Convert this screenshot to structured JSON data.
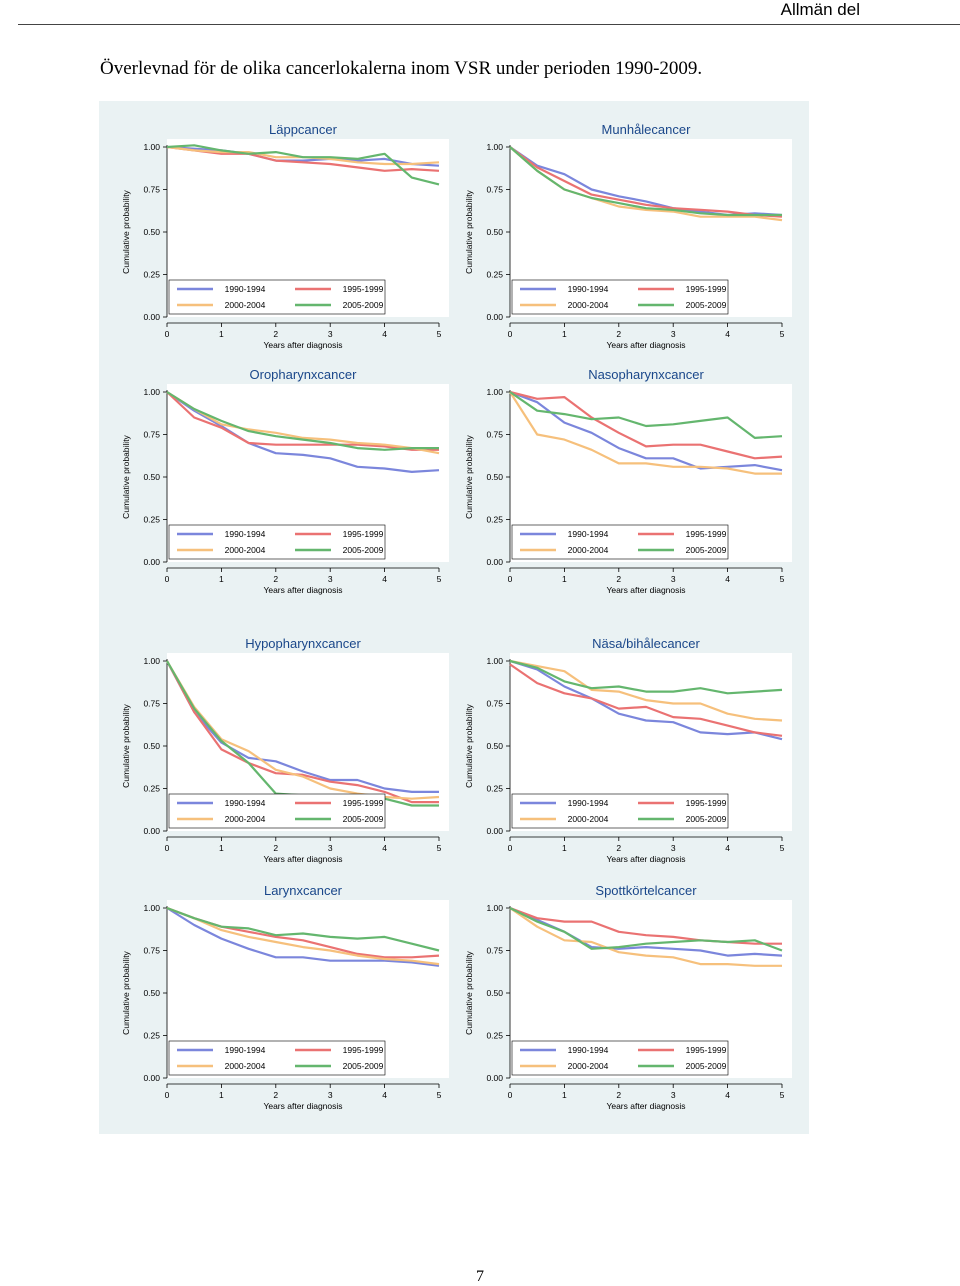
{
  "header": {
    "section": "Allmän del"
  },
  "document": {
    "title": "Överlevnad för de olika cancerlokalerna inom VSR under perioden 1990-2009.",
    "page_number": "7"
  },
  "series_colors": {
    "1990-1994": "#7b86dc",
    "1995-1999": "#ea7272",
    "2000-2004": "#f6c07c",
    "2005-2009": "#64b66e"
  },
  "chart_data": [
    {
      "type": "line",
      "title": "Läppcancer",
      "xlabel": "Years after diagnosis",
      "ylabel": "Cumulative probability",
      "xlim": [
        0,
        5
      ],
      "ylim": [
        0,
        1
      ],
      "xticks": [
        "0",
        "1",
        "2",
        "3",
        "4",
        "5"
      ],
      "yticks": [
        "0.00",
        "0.25",
        "0.50",
        "0.75",
        "1.00"
      ],
      "legend_position": "bottom",
      "grid": false,
      "x": [
        0,
        0.5,
        1,
        1.5,
        2,
        2.5,
        3,
        3.5,
        4,
        4.5,
        5
      ],
      "series": [
        {
          "name": "1990-1994",
          "values": [
            1.0,
            0.99,
            0.98,
            0.96,
            0.92,
            0.92,
            0.93,
            0.92,
            0.93,
            0.9,
            0.89
          ]
        },
        {
          "name": "1995-1999",
          "values": [
            1.0,
            0.98,
            0.96,
            0.96,
            0.92,
            0.91,
            0.9,
            0.88,
            0.86,
            0.87,
            0.86
          ]
        },
        {
          "name": "2000-2004",
          "values": [
            1.0,
            0.98,
            0.97,
            0.97,
            0.94,
            0.94,
            0.93,
            0.91,
            0.9,
            0.9,
            0.91
          ]
        },
        {
          "name": "2005-2009",
          "values": [
            1.0,
            1.01,
            0.98,
            0.96,
            0.97,
            0.94,
            0.94,
            0.93,
            0.96,
            0.82,
            0.78
          ]
        }
      ]
    },
    {
      "type": "line",
      "title": "Munhålecancer",
      "xlabel": "Years after diagnosis",
      "ylabel": "Cumulative probability",
      "xlim": [
        0,
        5
      ],
      "ylim": [
        0,
        1
      ],
      "xticks": [
        "0",
        "1",
        "2",
        "3",
        "4",
        "5"
      ],
      "yticks": [
        "0.00",
        "0.25",
        "0.50",
        "0.75",
        "1.00"
      ],
      "legend_position": "bottom",
      "grid": false,
      "x": [
        0,
        0.5,
        1,
        1.5,
        2,
        2.5,
        3,
        3.5,
        4,
        4.5,
        5
      ],
      "series": [
        {
          "name": "1990-1994",
          "values": [
            1.0,
            0.89,
            0.84,
            0.75,
            0.71,
            0.68,
            0.64,
            0.62,
            0.6,
            0.61,
            0.6
          ]
        },
        {
          "name": "1995-1999",
          "values": [
            1.0,
            0.88,
            0.8,
            0.72,
            0.69,
            0.66,
            0.64,
            0.63,
            0.62,
            0.6,
            0.59
          ]
        },
        {
          "name": "2000-2004",
          "values": [
            1.0,
            0.86,
            0.75,
            0.7,
            0.65,
            0.63,
            0.62,
            0.59,
            0.59,
            0.59,
            0.57
          ]
        },
        {
          "name": "2005-2009",
          "values": [
            1.0,
            0.86,
            0.75,
            0.7,
            0.67,
            0.64,
            0.63,
            0.61,
            0.6,
            0.6,
            0.6
          ]
        }
      ]
    },
    {
      "type": "line",
      "title": "Oropharynxcancer",
      "xlabel": "Years after diagnosis",
      "ylabel": "Cumulative probability",
      "xlim": [
        0,
        5
      ],
      "ylim": [
        0,
        1
      ],
      "xticks": [
        "0",
        "1",
        "2",
        "3",
        "4",
        "5"
      ],
      "yticks": [
        "0.00",
        "0.25",
        "0.50",
        "0.75",
        "1.00"
      ],
      "legend_position": "bottom",
      "grid": false,
      "x": [
        0,
        0.5,
        1,
        1.5,
        2,
        2.5,
        3,
        3.5,
        4,
        4.5,
        5
      ],
      "series": [
        {
          "name": "1990-1994",
          "values": [
            1.0,
            0.89,
            0.8,
            0.7,
            0.64,
            0.63,
            0.61,
            0.56,
            0.55,
            0.53,
            0.54
          ]
        },
        {
          "name": "1995-1999",
          "values": [
            1.0,
            0.85,
            0.79,
            0.7,
            0.69,
            0.69,
            0.69,
            0.69,
            0.68,
            0.66,
            0.66
          ]
        },
        {
          "name": "2000-2004",
          "values": [
            1.0,
            0.9,
            0.81,
            0.78,
            0.76,
            0.73,
            0.72,
            0.7,
            0.69,
            0.67,
            0.64
          ]
        },
        {
          "name": "2005-2009",
          "values": [
            1.0,
            0.9,
            0.83,
            0.77,
            0.74,
            0.72,
            0.7,
            0.67,
            0.66,
            0.67,
            0.67
          ]
        }
      ]
    },
    {
      "type": "line",
      "title": "Nasopharynxcancer",
      "xlabel": "Years after diagnosis",
      "ylabel": "Cumulative probability",
      "xlim": [
        0,
        5
      ],
      "ylim": [
        0,
        1
      ],
      "xticks": [
        "0",
        "1",
        "2",
        "3",
        "4",
        "5"
      ],
      "yticks": [
        "0.00",
        "0.25",
        "0.50",
        "0.75",
        "1.00"
      ],
      "legend_position": "bottom",
      "grid": false,
      "x": [
        0,
        0.5,
        1,
        1.5,
        2,
        2.5,
        3,
        3.5,
        4,
        4.5,
        5
      ],
      "series": [
        {
          "name": "1990-1994",
          "values": [
            1.0,
            0.94,
            0.82,
            0.76,
            0.67,
            0.61,
            0.61,
            0.55,
            0.56,
            0.57,
            0.54
          ]
        },
        {
          "name": "1995-1999",
          "values": [
            1.0,
            0.96,
            0.97,
            0.85,
            0.76,
            0.68,
            0.69,
            0.69,
            0.65,
            0.61,
            0.62
          ]
        },
        {
          "name": "2000-2004",
          "values": [
            1.0,
            0.75,
            0.72,
            0.66,
            0.58,
            0.58,
            0.56,
            0.56,
            0.55,
            0.52,
            0.52
          ]
        },
        {
          "name": "2005-2009",
          "values": [
            1.0,
            0.89,
            0.87,
            0.84,
            0.85,
            0.8,
            0.81,
            0.83,
            0.85,
            0.73,
            0.74
          ]
        }
      ]
    },
    {
      "type": "line",
      "title": "Hypopharynxcancer",
      "xlabel": "Years after diagnosis",
      "ylabel": "Cumulative probability",
      "xlim": [
        0,
        5
      ],
      "ylim": [
        0,
        1
      ],
      "xticks": [
        "0",
        "1",
        "2",
        "3",
        "4",
        "5"
      ],
      "yticks": [
        "0.00",
        "0.25",
        "0.50",
        "0.75",
        "1.00"
      ],
      "legend_position": "bottom",
      "grid": false,
      "x": [
        0,
        0.5,
        1,
        1.5,
        2,
        2.5,
        3,
        3.5,
        4,
        4.5,
        5
      ],
      "series": [
        {
          "name": "1990-1994",
          "values": [
            1.0,
            0.7,
            0.52,
            0.43,
            0.41,
            0.35,
            0.3,
            0.3,
            0.25,
            0.23,
            0.23
          ]
        },
        {
          "name": "1995-1999",
          "values": [
            1.0,
            0.7,
            0.48,
            0.4,
            0.34,
            0.33,
            0.29,
            0.27,
            0.23,
            0.17,
            0.17
          ]
        },
        {
          "name": "2000-2004",
          "values": [
            1.0,
            0.73,
            0.54,
            0.47,
            0.36,
            0.32,
            0.25,
            0.22,
            0.2,
            0.19,
            0.2
          ]
        },
        {
          "name": "2005-2009",
          "values": [
            1.0,
            0.72,
            0.53,
            0.4,
            0.22,
            0.21,
            0.21,
            0.19,
            0.19,
            0.15,
            0.15
          ]
        }
      ]
    },
    {
      "type": "line",
      "title": "Näsa/bihålecancer",
      "xlabel": "Years after diagnosis",
      "ylabel": "Cumulative probability",
      "xlim": [
        0,
        5
      ],
      "ylim": [
        0,
        1
      ],
      "xticks": [
        "0",
        "1",
        "2",
        "3",
        "4",
        "5"
      ],
      "yticks": [
        "0.00",
        "0.25",
        "0.50",
        "0.75",
        "1.00"
      ],
      "legend_position": "bottom",
      "grid": false,
      "x": [
        0,
        0.5,
        1,
        1.5,
        2,
        2.5,
        3,
        3.5,
        4,
        4.5,
        5
      ],
      "series": [
        {
          "name": "1990-1994",
          "values": [
            1.0,
            0.95,
            0.85,
            0.78,
            0.69,
            0.65,
            0.64,
            0.58,
            0.57,
            0.58,
            0.54
          ]
        },
        {
          "name": "1995-1999",
          "values": [
            0.98,
            0.87,
            0.81,
            0.78,
            0.72,
            0.73,
            0.67,
            0.66,
            0.62,
            0.58,
            0.56
          ]
        },
        {
          "name": "2000-2004",
          "values": [
            1.0,
            0.97,
            0.94,
            0.83,
            0.82,
            0.77,
            0.75,
            0.75,
            0.69,
            0.66,
            0.65
          ]
        },
        {
          "name": "2005-2009",
          "values": [
            1.0,
            0.96,
            0.88,
            0.84,
            0.85,
            0.82,
            0.82,
            0.84,
            0.81,
            0.82,
            0.83
          ]
        }
      ]
    },
    {
      "type": "line",
      "title": "Larynxcancer",
      "xlabel": "Years after diagnosis",
      "ylabel": "Cumulative probability",
      "xlim": [
        0,
        5
      ],
      "ylim": [
        0,
        1
      ],
      "xticks": [
        "0",
        "1",
        "2",
        "3",
        "4",
        "5"
      ],
      "yticks": [
        "0.00",
        "0.25",
        "0.50",
        "0.75",
        "1.00"
      ],
      "legend_position": "bottom",
      "grid": false,
      "x": [
        0,
        0.5,
        1,
        1.5,
        2,
        2.5,
        3,
        3.5,
        4,
        4.5,
        5
      ],
      "series": [
        {
          "name": "1990-1994",
          "values": [
            1.0,
            0.9,
            0.82,
            0.76,
            0.71,
            0.71,
            0.69,
            0.69,
            0.69,
            0.68,
            0.66
          ]
        },
        {
          "name": "1995-1999",
          "values": [
            1.0,
            0.94,
            0.89,
            0.86,
            0.83,
            0.81,
            0.77,
            0.73,
            0.71,
            0.71,
            0.72
          ]
        },
        {
          "name": "2000-2004",
          "values": [
            1.0,
            0.94,
            0.87,
            0.83,
            0.8,
            0.77,
            0.75,
            0.72,
            0.7,
            0.69,
            0.67
          ]
        },
        {
          "name": "2005-2009",
          "values": [
            1.0,
            0.94,
            0.89,
            0.88,
            0.84,
            0.85,
            0.83,
            0.82,
            0.83,
            0.79,
            0.75
          ]
        }
      ]
    },
    {
      "type": "line",
      "title": "Spottkörtelcancer",
      "xlabel": "Years after diagnosis",
      "ylabel": "Cumulative probability",
      "xlim": [
        0,
        5
      ],
      "ylim": [
        0,
        1
      ],
      "xticks": [
        "0",
        "1",
        "2",
        "3",
        "4",
        "5"
      ],
      "yticks": [
        "0.00",
        "0.25",
        "0.50",
        "0.75",
        "1.00"
      ],
      "legend_position": "bottom",
      "grid": false,
      "x": [
        0,
        0.5,
        1,
        1.5,
        2,
        2.5,
        3,
        3.5,
        4,
        4.5,
        5
      ],
      "series": [
        {
          "name": "1990-1994",
          "values": [
            1.0,
            0.93,
            0.86,
            0.77,
            0.76,
            0.77,
            0.76,
            0.75,
            0.72,
            0.73,
            0.72
          ]
        },
        {
          "name": "1995-1999",
          "values": [
            1.0,
            0.94,
            0.92,
            0.92,
            0.86,
            0.84,
            0.83,
            0.81,
            0.8,
            0.79,
            0.79
          ]
        },
        {
          "name": "2000-2004",
          "values": [
            1.0,
            0.89,
            0.81,
            0.8,
            0.74,
            0.72,
            0.71,
            0.67,
            0.67,
            0.66,
            0.66
          ]
        },
        {
          "name": "2005-2009",
          "values": [
            1.0,
            0.92,
            0.86,
            0.76,
            0.77,
            0.79,
            0.8,
            0.81,
            0.8,
            0.81,
            0.75
          ]
        }
      ]
    }
  ]
}
